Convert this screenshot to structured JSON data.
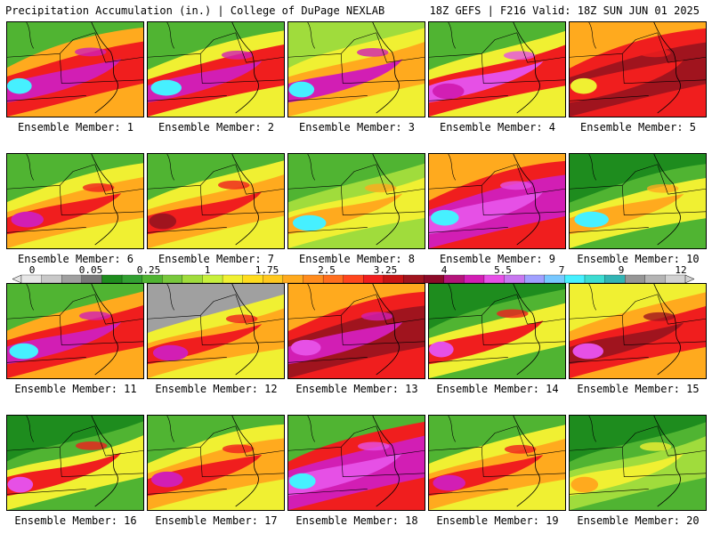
{
  "header": {
    "left": "Precipitation Accumulation (in.) | College of DuPage NEXLAB",
    "right": "18Z GEFS | F216 Valid: 18Z SUN JUN 01 2025"
  },
  "panels": [
    {
      "label": "Ensemble Member: 1"
    },
    {
      "label": "Ensemble Member: 2"
    },
    {
      "label": "Ensemble Member: 3"
    },
    {
      "label": "Ensemble Member: 4"
    },
    {
      "label": "Ensemble Member: 5"
    },
    {
      "label": "Ensemble Member: 6"
    },
    {
      "label": "Ensemble Member: 7"
    },
    {
      "label": "Ensemble Member: 8"
    },
    {
      "label": "Ensemble Member: 9"
    },
    {
      "label": "Ensemble Member: 10"
    },
    {
      "label": "Ensemble Member: 11"
    },
    {
      "label": "Ensemble Member: 12"
    },
    {
      "label": "Ensemble Member: 13"
    },
    {
      "label": "Ensemble Member: 14"
    },
    {
      "label": "Ensemble Member: 15"
    },
    {
      "label": "Ensemble Member: 16"
    },
    {
      "label": "Ensemble Member: 17"
    },
    {
      "label": "Ensemble Member: 18"
    },
    {
      "label": "Ensemble Member: 19"
    },
    {
      "label": "Ensemble Member: 20"
    }
  ],
  "colorbar": {
    "labels": [
      "0",
      "0.05",
      "0.25",
      "1",
      "1.75",
      "2.5",
      "3.25",
      "4",
      "5.5",
      "7",
      "9",
      "12"
    ],
    "colors": [
      "#e6e6e6",
      "#c8c8c8",
      "#a0a0a0",
      "#787878",
      "#1e8c1e",
      "#32a032",
      "#50b432",
      "#78c83c",
      "#a0dc3c",
      "#c8f03c",
      "#f0f032",
      "#ffdc1e",
      "#ffc81e",
      "#ffaa1e",
      "#ff8c1e",
      "#ff6e1e",
      "#ff461e",
      "#f01e1e",
      "#c81414",
      "#a0141e",
      "#8c0a28",
      "#b4147a",
      "#d21eb4",
      "#e650e6",
      "#c878f0",
      "#a0a0ff",
      "#78c8ff",
      "#46f0ff",
      "#3cdcd2",
      "#32b4b4",
      "#969696",
      "#b4b4b4",
      "#d2d2d2"
    ]
  },
  "palette": {
    "green_dark": "#1e8c1e",
    "green": "#50b432",
    "lime": "#a0dc3c",
    "yellow": "#f0f032",
    "orange": "#ffaa1e",
    "red": "#f01e1e",
    "darkred": "#a0141e",
    "magenta": "#d21eb4",
    "violet": "#e650e6",
    "cyan": "#46f0ff",
    "gray": "#a0a0a0"
  }
}
